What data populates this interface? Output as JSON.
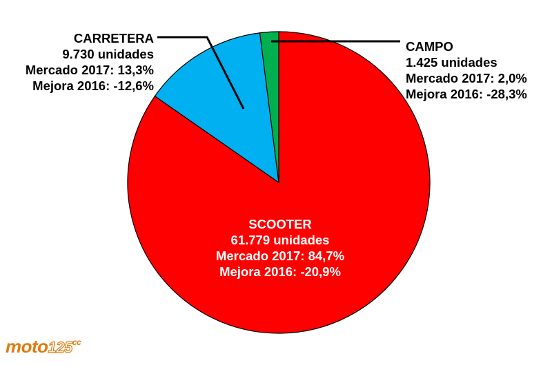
{
  "chart_data": {
    "type": "pie",
    "slices": [
      {
        "name": "SCOOTER",
        "units_label": "61.779 unidades",
        "market_label": "Mercado 2017: 84,7%",
        "improve_label": "Mejora 2016: -20,9%",
        "value": 84.7,
        "color": "#ff0000"
      },
      {
        "name": "CARRETERA",
        "units_label": "9.730 unidades",
        "market_label": "Mercado 2017: 13,3%",
        "improve_label": "Mejora 2016: -12,6%",
        "value": 13.3,
        "color": "#00b0f0"
      },
      {
        "name": "CAMPO",
        "units_label": "1.425 unidades",
        "market_label": "Mercado 2017: 2,0%",
        "improve_label": "Mejora 2016: -28,3%",
        "value": 2.0,
        "color": "#00b050"
      }
    ]
  },
  "logo": {
    "text": "moto",
    "number": "125",
    "suffix": "cc",
    "color": "#e07b10"
  }
}
